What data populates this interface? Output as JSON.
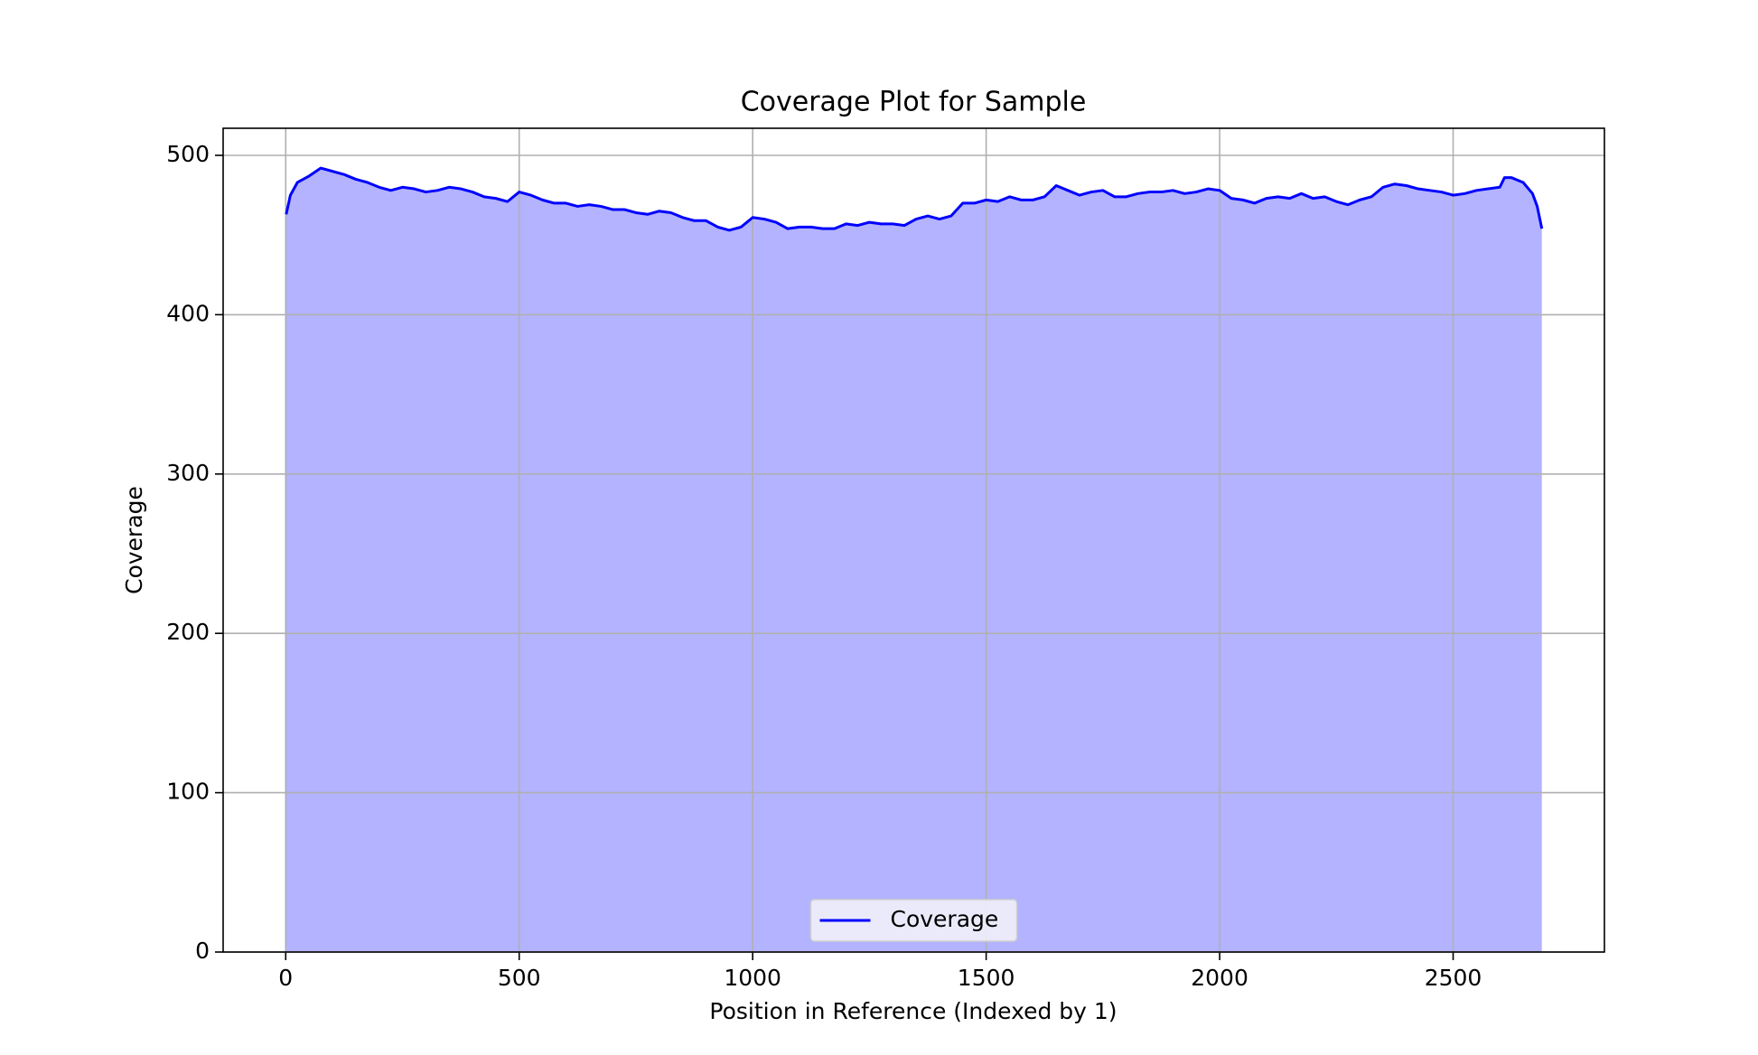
{
  "chart_data": {
    "type": "area",
    "title": "Coverage Plot for Sample",
    "xlabel": "Position in Reference (Indexed by 1)",
    "ylabel": "Coverage",
    "x": [
      1,
      10,
      25,
      50,
      75,
      100,
      125,
      150,
      175,
      200,
      225,
      250,
      275,
      300,
      325,
      350,
      375,
      400,
      425,
      450,
      475,
      500,
      525,
      550,
      575,
      600,
      625,
      650,
      675,
      700,
      725,
      750,
      775,
      800,
      825,
      850,
      875,
      900,
      925,
      950,
      975,
      1000,
      1025,
      1050,
      1075,
      1100,
      1125,
      1150,
      1175,
      1200,
      1225,
      1250,
      1275,
      1300,
      1325,
      1350,
      1375,
      1400,
      1425,
      1450,
      1475,
      1500,
      1525,
      1550,
      1575,
      1600,
      1625,
      1650,
      1675,
      1700,
      1725,
      1750,
      1775,
      1800,
      1825,
      1850,
      1875,
      1900,
      1925,
      1950,
      1975,
      2000,
      2025,
      2050,
      2075,
      2100,
      2125,
      2150,
      2175,
      2200,
      2225,
      2250,
      2275,
      2300,
      2325,
      2350,
      2375,
      2400,
      2425,
      2450,
      2475,
      2500,
      2525,
      2550,
      2575,
      2600,
      2610,
      2625,
      2650,
      2670,
      2680,
      2690
    ],
    "series": [
      {
        "name": "Coverage",
        "color": "#0000ff",
        "fill_color": "#b3b3ff",
        "values": [
          463,
          475,
          483,
          487,
          492,
          490,
          488,
          485,
          483,
          480,
          478,
          480,
          479,
          477,
          478,
          480,
          479,
          477,
          474,
          473,
          471,
          477,
          475,
          472,
          470,
          470,
          468,
          469,
          468,
          466,
          466,
          464,
          463,
          465,
          464,
          461,
          459,
          459,
          455,
          453,
          455,
          461,
          460,
          458,
          454,
          455,
          455,
          454,
          454,
          457,
          456,
          458,
          457,
          457,
          456,
          460,
          462,
          460,
          462,
          470,
          470,
          472,
          471,
          474,
          472,
          472,
          474,
          481,
          478,
          475,
          477,
          478,
          474,
          474,
          476,
          477,
          477,
          478,
          476,
          477,
          479,
          478,
          473,
          472,
          470,
          473,
          474,
          473,
          476,
          473,
          474,
          471,
          469,
          472,
          474,
          480,
          482,
          481,
          479,
          478,
          477,
          475,
          476,
          478,
          479,
          480,
          486,
          486,
          483,
          476,
          468,
          454
        ]
      }
    ],
    "xlim": [
      -134,
      2824
    ],
    "ylim": [
      0,
      517
    ],
    "xticks": [
      0,
      500,
      1000,
      1500,
      2000,
      2500
    ],
    "yticks": [
      0,
      100,
      200,
      300,
      400,
      500
    ],
    "grid": true,
    "legend": "lower center"
  }
}
